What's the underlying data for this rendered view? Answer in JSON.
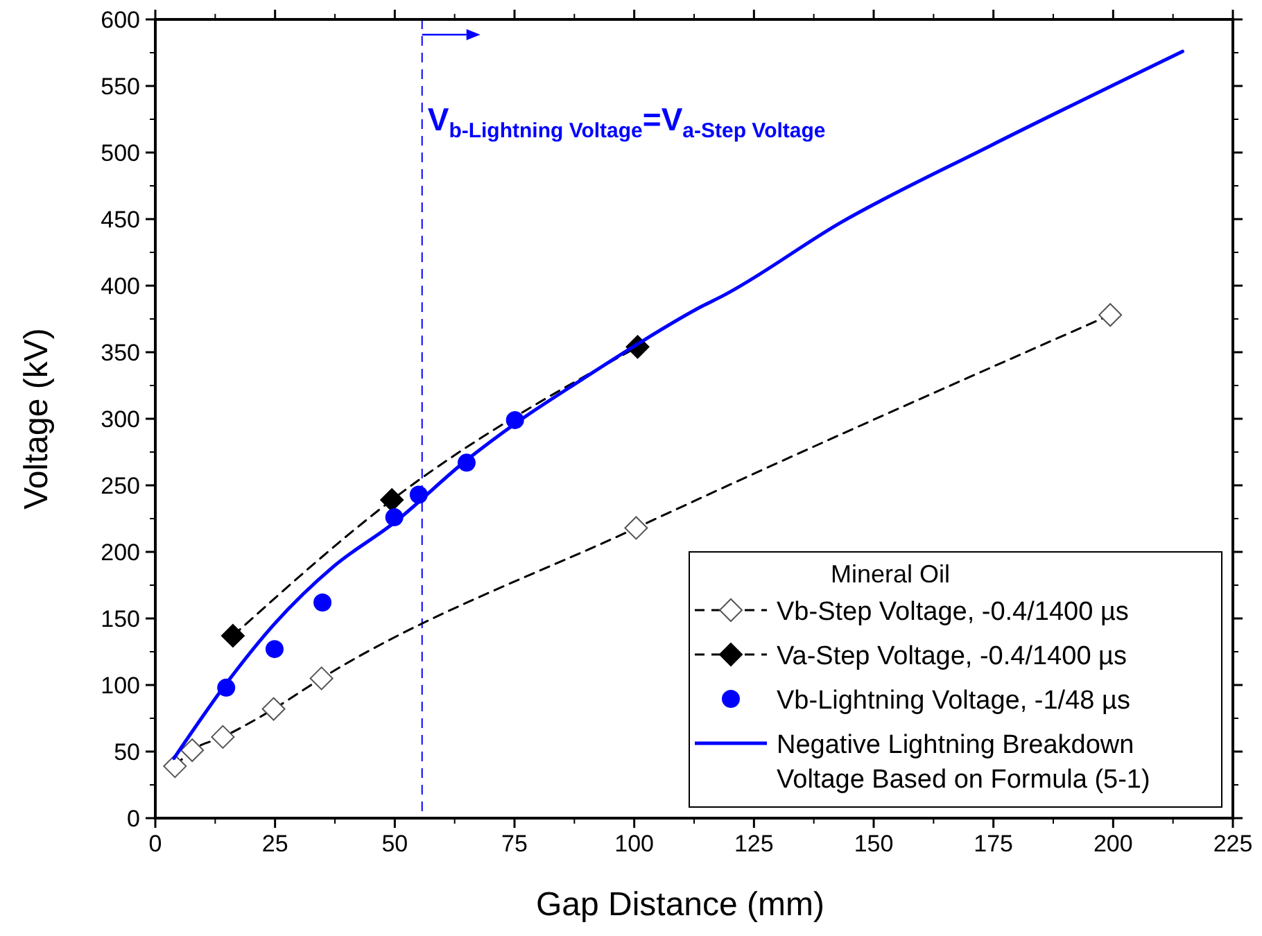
{
  "chart_data": {
    "type": "line",
    "xlabel": "Gap Distance (mm)",
    "ylabel": "Voltage (kV)",
    "xlim": [
      0,
      225
    ],
    "xticks": [
      0,
      25,
      50,
      75,
      100,
      125,
      150,
      175,
      200,
      225
    ],
    "ylim": [
      0,
      600
    ],
    "yticks": [
      0,
      50,
      100,
      150,
      200,
      250,
      300,
      350,
      400,
      450,
      500,
      550,
      600
    ],
    "grid": false,
    "legend": "bottom right",
    "legend_title": "Mineral Oil",
    "series": [
      {
        "name": "Vb-Step Voltage, -0.4/1400 µs",
        "color": "#000000",
        "colors": [
          "#ffffff",
          "#ffffff",
          "#ffffff",
          "#ffffff",
          "#ffffff",
          "#ffffff",
          "#ffffff"
        ],
        "marker": "diamond",
        "line_style": "dashed",
        "x": [
          4.1,
          7.7,
          14.1,
          24.7,
          34.7,
          100.4,
          199.4
        ],
        "values": [
          39,
          51,
          61,
          82,
          105,
          218,
          378
        ]
      },
      {
        "name": "Va-Step Voltage, -0.4/1400 µs",
        "color": "#000000",
        "marker": "diamond",
        "line_style": "dashed",
        "x": [
          16.2,
          49.4,
          100.7
        ],
        "values": [
          137,
          239,
          354
        ]
      },
      {
        "name": "Vb-Lightning Voltage, -1/48 µs",
        "type": "scatter",
        "color": "#0000ff",
        "marker": "circle",
        "x": [
          14.8,
          24.9,
          34.9,
          49.9,
          55,
          65,
          75.1
        ],
        "values": [
          98,
          127,
          162,
          226,
          243,
          267,
          299
        ]
      },
      {
        "name": "Negative Lightning Breakdown Voltage Based on Formula (5-1)",
        "color": "#0000ff",
        "marker": "none",
        "line_style": "solid",
        "x": [
          3.9,
          14.8,
          24.9,
          37.2,
          49.9,
          65,
          75,
          89.3,
          100.2,
          114.4,
          118.3,
          143.4,
          174.3,
          214.5
        ],
        "values": [
          45,
          101,
          146,
          189,
          222,
          269,
          296,
          330,
          355,
          385,
          392,
          448,
          505,
          576
        ]
      }
    ],
    "ref_lines": [
      {
        "axis": "x",
        "value": 55.7,
        "label": "V$_{b-Lightning Voltage}$=V$_{a-Step Voltage}$",
        "color": "#0000ff",
        "line_style": "dashed"
      }
    ]
  }
}
